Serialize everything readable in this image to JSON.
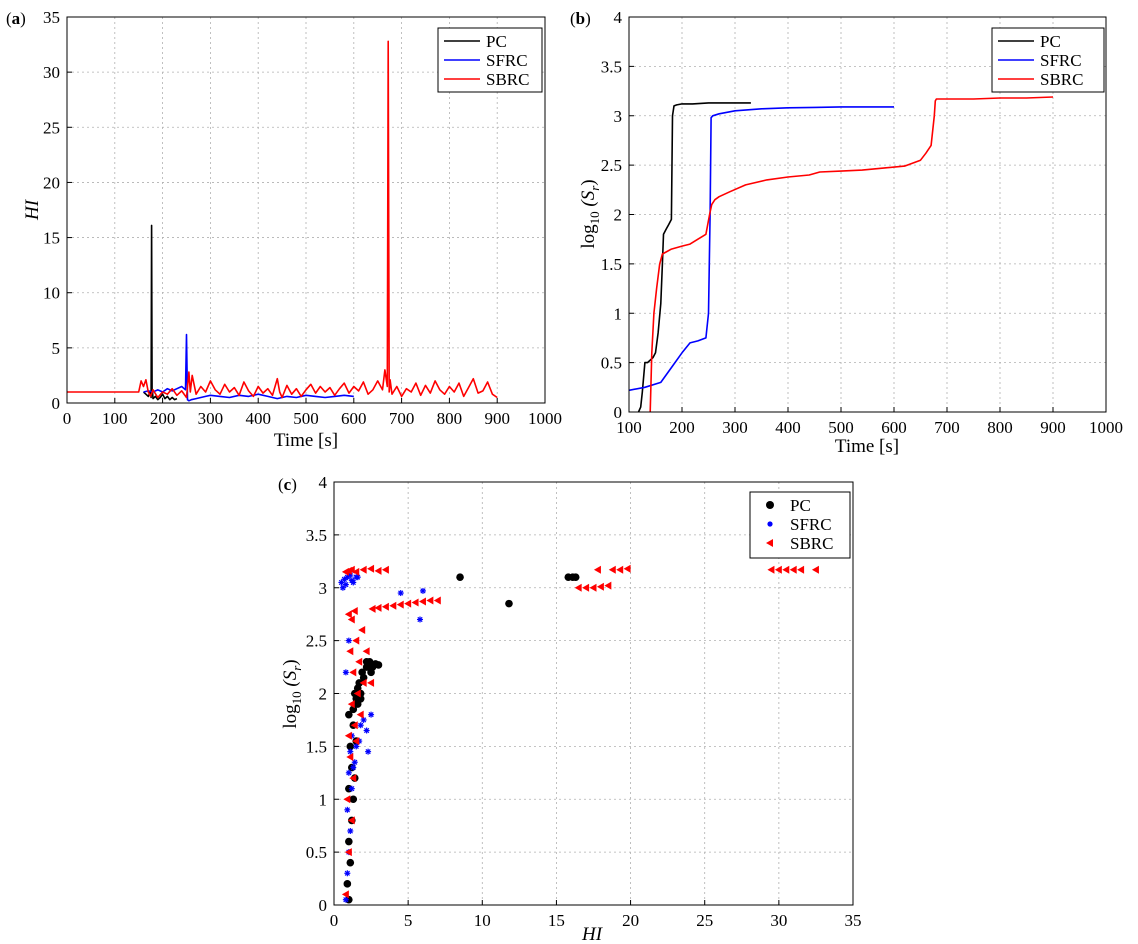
{
  "chart_data": [
    {
      "panel_label": "(a)",
      "type": "line",
      "xlabel": "Time [s]",
      "ylabel": "HI",
      "xlim": [
        0,
        1000
      ],
      "ylim": [
        0,
        35
      ],
      "xticks": [
        0,
        100,
        200,
        300,
        400,
        500,
        600,
        700,
        800,
        900,
        1000
      ],
      "yticks": [
        0,
        5,
        10,
        15,
        20,
        25,
        30,
        35
      ],
      "grid": true,
      "legend": "top-right",
      "series": [
        {
          "name": "PC",
          "color": "#000000",
          "x": [
            160,
            165,
            170,
            174,
            176,
            177,
            178,
            179,
            180,
            185,
            190,
            195,
            200,
            205,
            210,
            215,
            220,
            225,
            230
          ],
          "y": [
            1.0,
            0.8,
            0.6,
            1.0,
            0.5,
            16.1,
            0.7,
            0.9,
            0.4,
            0.6,
            0.3,
            0.5,
            0.8,
            0.4,
            0.6,
            0.3,
            0.5,
            0.3,
            0.4
          ]
        },
        {
          "name": "SFRC",
          "color": "#0000ff",
          "x": [
            160,
            170,
            180,
            190,
            200,
            210,
            220,
            230,
            240,
            248,
            250,
            252,
            255,
            260,
            270,
            280,
            290,
            300,
            320,
            340,
            360,
            380,
            400,
            420,
            440,
            460,
            480,
            500,
            520,
            540,
            560,
            580,
            600
          ],
          "y": [
            1.0,
            1.1,
            1.0,
            1.2,
            1.0,
            1.3,
            1.1,
            1.3,
            1.5,
            1.2,
            6.2,
            0.3,
            0.2,
            0.3,
            0.4,
            0.5,
            0.6,
            0.7,
            0.6,
            0.5,
            0.7,
            0.6,
            0.8,
            0.6,
            0.4,
            0.6,
            0.5,
            0.7,
            0.6,
            0.5,
            0.6,
            0.7,
            0.6
          ]
        },
        {
          "name": "SBRC",
          "color": "#ff0000",
          "x": [
            0,
            100,
            150,
            155,
            160,
            165,
            170,
            175,
            180,
            190,
            200,
            210,
            220,
            230,
            240,
            250,
            255,
            258,
            262,
            270,
            280,
            290,
            300,
            310,
            320,
            330,
            340,
            350,
            360,
            370,
            380,
            390,
            400,
            410,
            420,
            430,
            440,
            445,
            450,
            460,
            470,
            480,
            490,
            500,
            510,
            520,
            530,
            540,
            550,
            560,
            570,
            580,
            590,
            600,
            610,
            620,
            630,
            640,
            650,
            660,
            665,
            670,
            672,
            674,
            676,
            680,
            690,
            700,
            710,
            720,
            730,
            740,
            750,
            760,
            770,
            780,
            790,
            800,
            810,
            820,
            830,
            840,
            850,
            860,
            870,
            880,
            890,
            900
          ],
          "y": [
            1.0,
            1.0,
            1.0,
            2.0,
            1.5,
            2.1,
            1.0,
            0.6,
            1.2,
            0.5,
            1.0,
            0.8,
            1.3,
            0.7,
            1.1,
            0.5,
            2.8,
            1.0,
            2.5,
            0.8,
            1.5,
            1.0,
            2.0,
            1.2,
            0.8,
            1.7,
            1.0,
            1.4,
            0.7,
            1.9,
            1.1,
            0.6,
            1.5,
            0.9,
            1.3,
            0.7,
            2.2,
            1.0,
            0.5,
            1.6,
            0.8,
            1.3,
            0.6,
            1.2,
            1.7,
            0.9,
            1.5,
            1.0,
            1.4,
            0.7,
            1.3,
            1.8,
            0.9,
            1.5,
            1.1,
            1.9,
            0.8,
            1.2,
            2.0,
            1.2,
            3.0,
            1.5,
            32.8,
            1.0,
            2.1,
            0.8,
            1.5,
            0.6,
            1.3,
            1.0,
            1.8,
            0.7,
            1.6,
            0.9,
            2.0,
            1.2,
            0.8,
            1.5,
            1.0,
            1.8,
            0.6,
            1.4,
            2.2,
            0.9,
            1.1,
            1.9,
            0.8,
            0.5
          ]
        }
      ]
    },
    {
      "panel_label": "(b)",
      "type": "line",
      "xlabel": "Time [s]",
      "ylabel_base": "log",
      "ylabel_sub": "10",
      "ylabel_arg": "(S",
      "ylabel_arg_sub": "r",
      "ylabel_close": ")",
      "xlim": [
        100,
        1000
      ],
      "ylim": [
        0,
        4
      ],
      "xticks": [
        100,
        200,
        300,
        400,
        500,
        600,
        700,
        800,
        900,
        1000
      ],
      "yticks": [
        0,
        0.5,
        1,
        1.5,
        2,
        2.5,
        3,
        3.5,
        4
      ],
      "grid": true,
      "legend": "top-right",
      "series": [
        {
          "name": "PC",
          "color": "#000000",
          "x": [
            118,
            122,
            125,
            130,
            135,
            145,
            150,
            155,
            160,
            163,
            165,
            170,
            175,
            180,
            182,
            185,
            190,
            200,
            220,
            250,
            300,
            330
          ],
          "y": [
            0.0,
            0.05,
            0.2,
            0.5,
            0.5,
            0.55,
            0.6,
            0.8,
            1.1,
            1.5,
            1.8,
            1.85,
            1.9,
            1.95,
            3.0,
            3.1,
            3.11,
            3.12,
            3.12,
            3.13,
            3.13,
            3.13
          ]
        },
        {
          "name": "SFRC",
          "color": "#0000ff",
          "x": [
            100,
            130,
            160,
            180,
            200,
            215,
            230,
            245,
            250,
            253,
            255,
            258,
            270,
            300,
            350,
            400,
            450,
            500,
            550,
            600
          ],
          "y": [
            0.22,
            0.25,
            0.3,
            0.45,
            0.6,
            0.7,
            0.72,
            0.75,
            1.0,
            2.0,
            2.98,
            3.0,
            3.02,
            3.05,
            3.07,
            3.08,
            3.085,
            3.09,
            3.09,
            3.09
          ]
        },
        {
          "name": "SBRC",
          "color": "#ff0000",
          "x": [
            140,
            143,
            147,
            152,
            158,
            163,
            170,
            180,
            200,
            215,
            230,
            245,
            252,
            256,
            262,
            270,
            290,
            320,
            360,
            400,
            440,
            460,
            500,
            540,
            580,
            620,
            650,
            660,
            670,
            676,
            678,
            680,
            700,
            750,
            800,
            850,
            900
          ],
          "y": [
            0.0,
            0.6,
            1.0,
            1.25,
            1.5,
            1.6,
            1.62,
            1.65,
            1.68,
            1.7,
            1.75,
            1.8,
            2.0,
            2.1,
            2.15,
            2.18,
            2.23,
            2.3,
            2.35,
            2.38,
            2.4,
            2.43,
            2.44,
            2.45,
            2.47,
            2.49,
            2.55,
            2.62,
            2.7,
            3.0,
            3.15,
            3.17,
            3.17,
            3.17,
            3.18,
            3.18,
            3.19
          ]
        }
      ]
    },
    {
      "panel_label": "(c)",
      "type": "scatter",
      "xlabel": "HI",
      "ylabel_base": "log",
      "ylabel_sub": "10",
      "ylabel_arg": "(S",
      "ylabel_arg_sub": "r",
      "ylabel_close": ")",
      "xlim": [
        0,
        35
      ],
      "ylim": [
        0,
        4
      ],
      "xticks": [
        0,
        5,
        10,
        15,
        20,
        25,
        30,
        35
      ],
      "yticks": [
        0,
        0.5,
        1,
        1.5,
        2,
        2.5,
        3,
        3.5,
        4
      ],
      "grid": true,
      "legend": "top-right",
      "series": [
        {
          "name": "PC",
          "color": "#000000",
          "marker": "circle",
          "x": [
            1.0,
            0.9,
            1.1,
            1.0,
            1.2,
            1.3,
            1.0,
            1.4,
            1.2,
            1.1,
            1.5,
            1.3,
            1.0,
            1.6,
            1.4,
            1.8,
            1.5,
            1.3,
            1.7,
            2.0,
            1.6,
            1.9,
            2.2,
            2.4,
            2.6,
            2.8,
            3.0,
            2.5,
            2.2,
            1.8,
            8.5,
            11.8,
            15.8,
            16.1,
            16.3
          ],
          "y": [
            0.05,
            0.2,
            0.4,
            0.6,
            0.8,
            1.0,
            1.1,
            1.2,
            1.3,
            1.5,
            1.55,
            1.7,
            1.8,
            1.9,
            2.0,
            2.0,
            1.95,
            1.85,
            2.1,
            2.15,
            2.05,
            2.2,
            2.25,
            2.3,
            2.25,
            2.28,
            2.27,
            2.2,
            2.3,
            1.95,
            3.1,
            2.85,
            3.1,
            3.1,
            3.1
          ]
        },
        {
          "name": "SFRC",
          "color": "#0000ff",
          "marker": "star",
          "x": [
            0.8,
            0.9,
            1.0,
            1.1,
            0.9,
            1.2,
            1.0,
            1.3,
            1.1,
            1.5,
            1.2,
            1.8,
            2.0,
            2.3,
            1.7,
            1.4,
            2.5,
            2.2,
            0.5,
            0.7,
            0.9,
            1.1,
            1.3,
            1.5,
            0.6,
            0.8,
            1.2,
            1.6,
            6.0,
            5.8,
            4.5,
            1.0,
            0.8
          ],
          "y": [
            0.05,
            0.3,
            0.5,
            0.7,
            0.9,
            1.1,
            1.25,
            1.3,
            1.45,
            1.5,
            1.6,
            1.7,
            1.75,
            1.45,
            1.55,
            1.35,
            1.8,
            1.65,
            3.05,
            3.08,
            3.1,
            3.12,
            3.05,
            3.1,
            3.0,
            3.03,
            3.07,
            3.1,
            2.97,
            2.7,
            2.95,
            2.5,
            2.2
          ]
        },
        {
          "name": "SBRC",
          "color": "#ff0000",
          "marker": "triangle-left",
          "x": [
            0.8,
            1.0,
            1.2,
            0.9,
            1.3,
            1.1,
            1.5,
            1.0,
            1.4,
            1.8,
            1.2,
            1.6,
            2.0,
            1.3,
            1.7,
            1.1,
            2.2,
            2.5,
            1.5,
            1.9,
            1.2,
            1.0,
            1.4,
            2.6,
            3.0,
            3.5,
            4.0,
            4.5,
            5.0,
            5.5,
            6.0,
            6.5,
            7.0,
            0.8,
            1.0,
            1.2,
            1.5,
            2.0,
            2.5,
            3.0,
            3.5,
            16.5,
            17.0,
            17.5,
            18.0,
            18.5,
            17.8,
            18.8,
            19.3,
            19.8,
            29.5,
            30.0,
            30.5,
            31.0,
            31.5,
            32.5
          ],
          "y": [
            0.1,
            0.5,
            0.8,
            1.0,
            1.2,
            1.4,
            1.55,
            1.6,
            1.7,
            1.8,
            1.9,
            2.0,
            2.1,
            2.2,
            2.3,
            2.4,
            2.4,
            2.1,
            2.5,
            2.6,
            2.7,
            2.75,
            2.78,
            2.8,
            2.81,
            2.82,
            2.83,
            2.84,
            2.85,
            2.86,
            2.87,
            2.88,
            2.88,
            3.15,
            3.16,
            3.17,
            3.15,
            3.17,
            3.18,
            3.16,
            3.17,
            3.0,
            3.0,
            3.0,
            3.01,
            3.02,
            3.17,
            3.17,
            3.17,
            3.18,
            3.17,
            3.17,
            3.17,
            3.17,
            3.17,
            3.17
          ]
        }
      ]
    }
  ]
}
